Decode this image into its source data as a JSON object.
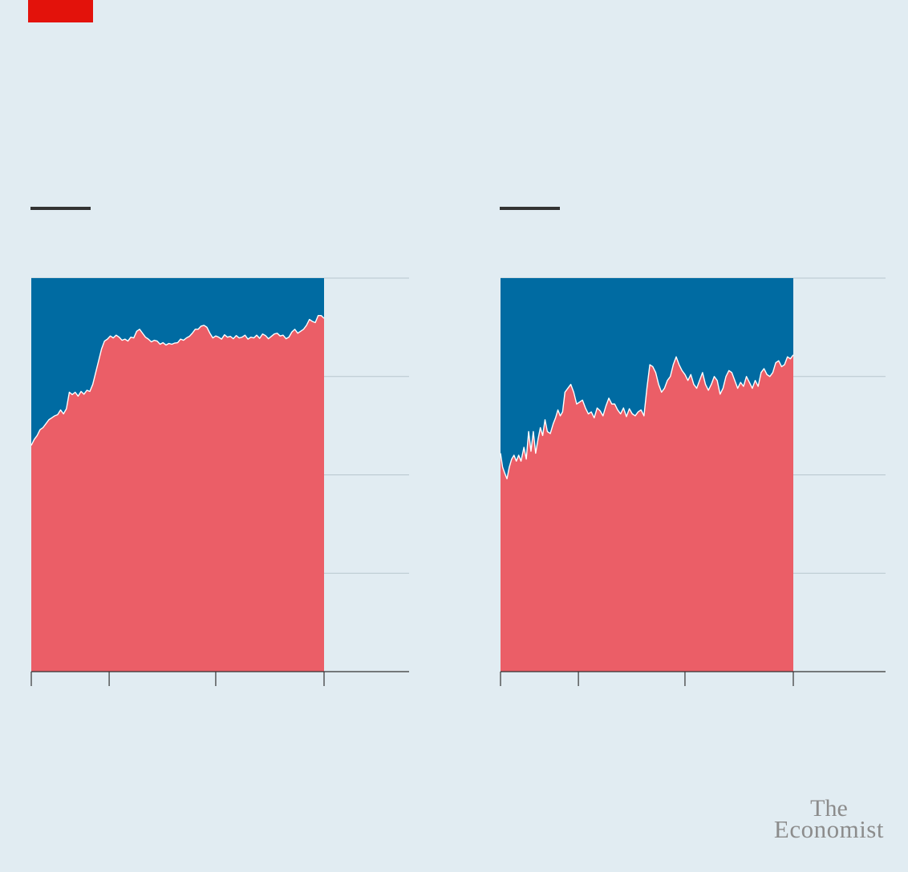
{
  "colors": {
    "background": "#e1ecf2",
    "accent_red_tag": "#e3120b",
    "series_lower": "#eb5e67",
    "series_upper": "#006ba2",
    "gridline": "#b7c6ce",
    "axis": "#333333",
    "legend_key": "#333333"
  },
  "logo": {
    "line1": "The",
    "line2": "Economist"
  },
  "chart_data": [
    {
      "type": "area",
      "stacked": "percent",
      "title": "",
      "xlabel": "",
      "ylabel": "",
      "ylim": [
        0,
        100
      ],
      "xlim": [
        0,
        100
      ],
      "y_gridlines": [
        0,
        25,
        50,
        75,
        100
      ],
      "x_ticks": [
        0,
        26.6,
        63,
        100
      ],
      "series": [
        {
          "values": [
            [
              0,
              57.5
            ],
            [
              1,
              59
            ],
            [
              2,
              60
            ],
            [
              3,
              61.5
            ],
            [
              4,
              62
            ],
            [
              5,
              63
            ],
            [
              6,
              64
            ],
            [
              7,
              64.5
            ],
            [
              8,
              65
            ],
            [
              9,
              65.3
            ],
            [
              10,
              66.5
            ],
            [
              11,
              65.5
            ],
            [
              12,
              66.8
            ],
            [
              13,
              71
            ],
            [
              14,
              70.4
            ],
            [
              15,
              71
            ],
            [
              16,
              70
            ],
            [
              17,
              71.2
            ],
            [
              18,
              70.5
            ],
            [
              19,
              71.5
            ],
            [
              20,
              71.2
            ],
            [
              21,
              73
            ],
            [
              22,
              76
            ],
            [
              23,
              79
            ],
            [
              24,
              82
            ],
            [
              25,
              84
            ],
            [
              26,
              84.5
            ],
            [
              27,
              85.3
            ],
            [
              28,
              84.8
            ],
            [
              29,
              85.5
            ],
            [
              30,
              85
            ],
            [
              31,
              84.2
            ],
            [
              32,
              84.5
            ],
            [
              33,
              84
            ],
            [
              34,
              85
            ],
            [
              35,
              84.8
            ],
            [
              36,
              86.5
            ],
            [
              37,
              87
            ],
            [
              38,
              86
            ],
            [
              39,
              85
            ],
            [
              40,
              84.5
            ],
            [
              41,
              83.8
            ],
            [
              42,
              84.2
            ],
            [
              43,
              84
            ],
            [
              44,
              83.2
            ],
            [
              45,
              83.6
            ],
            [
              46,
              83
            ],
            [
              47,
              83.4
            ],
            [
              48,
              83.2
            ],
            [
              49,
              83.5
            ],
            [
              50,
              83.6
            ],
            [
              51,
              84.5
            ],
            [
              52,
              84.2
            ],
            [
              53,
              84.8
            ],
            [
              54,
              85.2
            ],
            [
              55,
              86
            ],
            [
              56,
              87
            ],
            [
              57,
              87
            ],
            [
              58,
              87.8
            ],
            [
              59,
              88
            ],
            [
              60,
              87.5
            ],
            [
              61,
              86
            ],
            [
              62,
              84.8
            ],
            [
              63,
              85.3
            ],
            [
              64,
              85
            ],
            [
              65,
              84.5
            ],
            [
              66,
              85.6
            ],
            [
              67,
              85
            ],
            [
              68,
              85.2
            ],
            [
              69,
              84.6
            ],
            [
              70,
              85.4
            ],
            [
              71,
              84.8
            ],
            [
              72,
              85
            ],
            [
              73,
              85.5
            ],
            [
              74,
              84.5
            ],
            [
              75,
              85
            ],
            [
              76,
              84.8
            ],
            [
              77,
              85.5
            ],
            [
              78,
              84.7
            ],
            [
              79,
              85.8
            ],
            [
              80,
              85.4
            ],
            [
              81,
              84.6
            ],
            [
              82,
              85.2
            ],
            [
              83,
              85.8
            ],
            [
              84,
              86
            ],
            [
              85,
              85.3
            ],
            [
              86,
              85.5
            ],
            [
              87,
              84.6
            ],
            [
              88,
              85
            ],
            [
              89,
              86.3
            ],
            [
              90,
              87
            ],
            [
              91,
              86
            ],
            [
              92,
              86.5
            ],
            [
              93,
              87
            ],
            [
              94,
              88
            ],
            [
              95,
              89.5
            ],
            [
              96,
              89
            ],
            [
              97,
              88.7
            ],
            [
              98,
              90.5
            ],
            [
              99,
              90.5
            ],
            [
              100,
              89.8
            ]
          ]
        }
      ]
    },
    {
      "type": "area",
      "stacked": "percent",
      "title": "",
      "xlabel": "",
      "ylabel": "",
      "ylim": [
        0,
        100
      ],
      "xlim": [
        0,
        100
      ],
      "y_gridlines": [
        0,
        25,
        50,
        75,
        100
      ],
      "x_ticks": [
        0,
        26.6,
        63,
        100
      ],
      "series": [
        {
          "values": [
            [
              0,
              55.5
            ],
            [
              0.7,
              52
            ],
            [
              1.4,
              50.5
            ],
            [
              2.2,
              49
            ],
            [
              3,
              52
            ],
            [
              3.8,
              54
            ],
            [
              4.6,
              55
            ],
            [
              5.4,
              53.5
            ],
            [
              6.2,
              55
            ],
            [
              7,
              53.5
            ],
            [
              8,
              57
            ],
            [
              8.8,
              54
            ],
            [
              9.6,
              61
            ],
            [
              10.4,
              56
            ],
            [
              11.2,
              61
            ],
            [
              12,
              55.5
            ],
            [
              12.8,
              59
            ],
            [
              13.6,
              62
            ],
            [
              14.4,
              60
            ],
            [
              15.2,
              64
            ],
            [
              16,
              61
            ],
            [
              17,
              60.5
            ],
            [
              18,
              63
            ],
            [
              18.8,
              64.5
            ],
            [
              19.6,
              66.5
            ],
            [
              20.4,
              65
            ],
            [
              21.2,
              66
            ],
            [
              22,
              71
            ],
            [
              23,
              72
            ],
            [
              24,
              73
            ],
            [
              25,
              71
            ],
            [
              26,
              68
            ],
            [
              27,
              68.5
            ],
            [
              28,
              69
            ],
            [
              29,
              67
            ],
            [
              30,
              65.5
            ],
            [
              31,
              66
            ],
            [
              32,
              64.5
            ],
            [
              33,
              67
            ],
            [
              34,
              66.3
            ],
            [
              35,
              65
            ],
            [
              36,
              67.5
            ],
            [
              37,
              69.5
            ],
            [
              38,
              68
            ],
            [
              39,
              68
            ],
            [
              40,
              66.5
            ],
            [
              41,
              65.5
            ],
            [
              42,
              67
            ],
            [
              43,
              64.8
            ],
            [
              44,
              66.8
            ],
            [
              45,
              65.5
            ],
            [
              46,
              65
            ],
            [
              47,
              66
            ],
            [
              48,
              66.5
            ],
            [
              49,
              65
            ],
            [
              50,
              72
            ],
            [
              51,
              78
            ],
            [
              52,
              77.5
            ],
            [
              53,
              76
            ],
            [
              54,
              73
            ],
            [
              55,
              71
            ],
            [
              56,
              72
            ],
            [
              57,
              74
            ],
            [
              58,
              75
            ],
            [
              59,
              78
            ],
            [
              60,
              80
            ],
            [
              61,
              78
            ],
            [
              62,
              76.5
            ],
            [
              63,
              75.5
            ],
            [
              64,
              74
            ],
            [
              65,
              75.5
            ],
            [
              66,
              73
            ],
            [
              67,
              72
            ],
            [
              68,
              74
            ],
            [
              69,
              76
            ],
            [
              70,
              73
            ],
            [
              71,
              71.5
            ],
            [
              72,
              73
            ],
            [
              73,
              75
            ],
            [
              74,
              74
            ],
            [
              75,
              70.5
            ],
            [
              76,
              72
            ],
            [
              77,
              75
            ],
            [
              78,
              76.5
            ],
            [
              79,
              76
            ],
            [
              80,
              74
            ],
            [
              81,
              72
            ],
            [
              82,
              73.5
            ],
            [
              83,
              72.5
            ],
            [
              84,
              75
            ],
            [
              85,
              73.5
            ],
            [
              86,
              72
            ],
            [
              87,
              74
            ],
            [
              88,
              72.5
            ],
            [
              89,
              76
            ],
            [
              90,
              77
            ],
            [
              91,
              75.5
            ],
            [
              92,
              75
            ],
            [
              93,
              76
            ],
            [
              94,
              78.5
            ],
            [
              95,
              79
            ],
            [
              96,
              77.5
            ],
            [
              97,
              78
            ],
            [
              98,
              80
            ],
            [
              99,
              79.5
            ],
            [
              100,
              80.5
            ]
          ]
        }
      ]
    }
  ]
}
